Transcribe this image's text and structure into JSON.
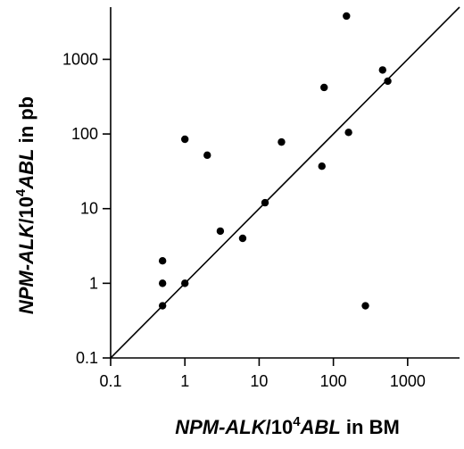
{
  "chart_data": {
    "type": "scatter",
    "xscale": "log",
    "yscale": "log",
    "xlim": [
      0.1,
      5000
    ],
    "ylim": [
      0.1,
      5000
    ],
    "xticks": [
      0.1,
      1,
      10,
      100,
      1000
    ],
    "yticks": [
      0.1,
      1,
      10,
      100,
      1000
    ],
    "xtick_labels": [
      "0.1",
      "1",
      "10",
      "100",
      "1000"
    ],
    "ytick_labels": [
      "0.1",
      "1",
      "10",
      "100",
      "1000"
    ],
    "xlabel": {
      "gene": "NPM-ALK",
      "slash": "/10",
      "exp": "4",
      "ref": "ABL",
      "suffix": " in BM"
    },
    "ylabel": {
      "gene": "NPM-ALK",
      "slash": "/10",
      "exp": "4",
      "ref": "ABL",
      "suffix": " in pb"
    },
    "reference_line": "y = x",
    "grid": false,
    "points": [
      {
        "x": 0.5,
        "y": 0.5
      },
      {
        "x": 0.5,
        "y": 1
      },
      {
        "x": 0.5,
        "y": 2
      },
      {
        "x": 1,
        "y": 1
      },
      {
        "x": 1,
        "y": 85
      },
      {
        "x": 2,
        "y": 52
      },
      {
        "x": 3,
        "y": 5
      },
      {
        "x": 6,
        "y": 4
      },
      {
        "x": 12,
        "y": 12
      },
      {
        "x": 20,
        "y": 78
      },
      {
        "x": 70,
        "y": 37
      },
      {
        "x": 75,
        "y": 420
      },
      {
        "x": 150,
        "y": 3800
      },
      {
        "x": 160,
        "y": 105
      },
      {
        "x": 270,
        "y": 0.5
      },
      {
        "x": 460,
        "y": 720
      },
      {
        "x": 540,
        "y": 510
      }
    ]
  }
}
